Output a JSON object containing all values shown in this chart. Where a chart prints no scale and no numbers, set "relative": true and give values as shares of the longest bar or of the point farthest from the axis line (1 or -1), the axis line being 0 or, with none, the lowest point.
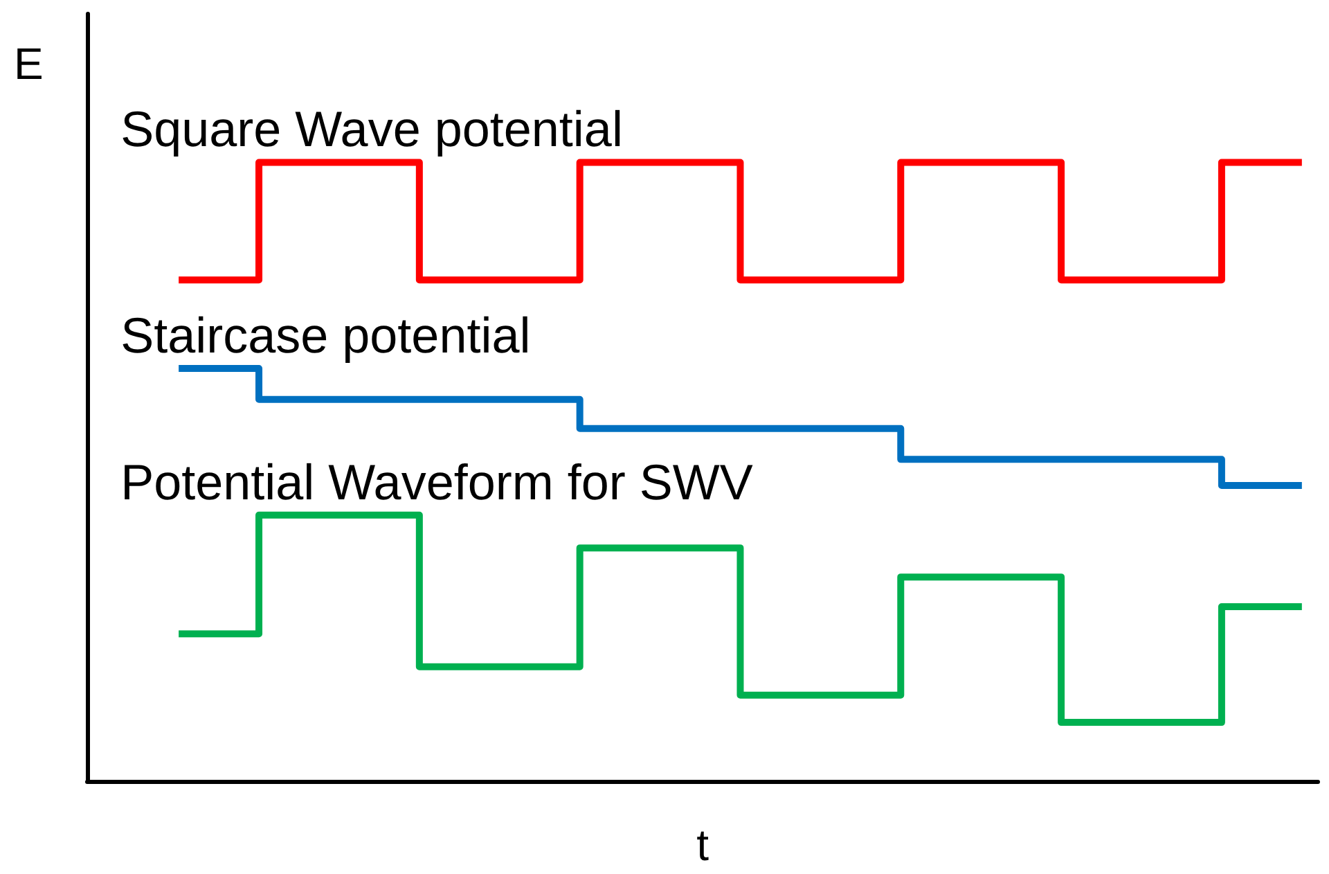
{
  "chart_data": {
    "type": "step",
    "relative": true,
    "xlabel": "t",
    "ylabel": "E",
    "tick_labels": false,
    "grid": false,
    "marker": "none",
    "line_style": "solid",
    "categories": [
      null,
      null,
      null,
      null,
      null,
      null,
      null,
      null,
      null,
      null,
      null,
      null,
      null,
      null,
      null
    ],
    "series": [
      {
        "name": "Square Wave potential",
        "color": "#ff0000",
        "values": [
          0.81,
          1,
          1,
          0.81,
          0.81,
          1,
          1,
          0.81,
          0.81,
          1,
          1,
          0.81,
          0.81,
          1,
          1
        ]
      },
      {
        "name": "Staircase potential",
        "color": "#0070c0",
        "values": [
          0.667,
          0.617,
          0.617,
          0.617,
          0.617,
          0.57,
          0.57,
          0.57,
          0.57,
          0.52,
          0.52,
          0.52,
          0.52,
          0.478,
          0.478
        ]
      },
      {
        "name": "Potential Waveform for SWV",
        "color": "#00b050",
        "values": [
          0.238,
          0.43,
          0.43,
          0.185,
          0.185,
          0.377,
          0.377,
          0.139,
          0.139,
          0.33,
          0.33,
          0.095,
          0.095,
          0.282,
          0.282
        ]
      }
    ]
  }
}
